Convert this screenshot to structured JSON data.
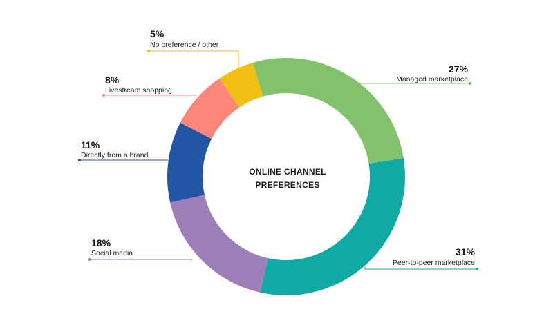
{
  "chart_data": {
    "type": "pie",
    "title_lines": [
      "ONLINE CHANNEL",
      "PREFERENCES"
    ],
    "slices": [
      {
        "label": "Managed marketplace",
        "value": 27,
        "value_label": "27%",
        "color": "#82c26c"
      },
      {
        "label": "Peer-to-peer marketplace",
        "value": 31,
        "value_label": "31%",
        "color": "#11a9a3"
      },
      {
        "label": "Social media",
        "value": 18,
        "value_label": "18%",
        "color": "#9e7fb9"
      },
      {
        "label": "Directly from a brand",
        "value": 11,
        "value_label": "11%",
        "color": "#2255a4"
      },
      {
        "label": "Livestream shopping",
        "value": 8,
        "value_label": "8%",
        "color": "#fc8679"
      },
      {
        "label": "No preference / other",
        "value": 5,
        "value_label": "5%",
        "color": "#f0be14"
      }
    ]
  }
}
